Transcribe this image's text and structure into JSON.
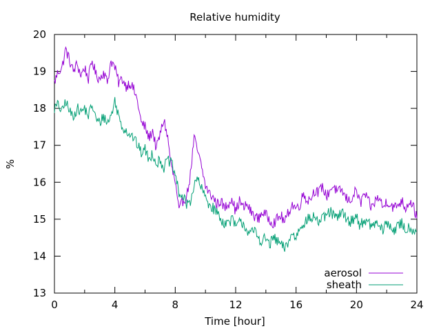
{
  "chart_data": {
    "type": "line",
    "title": "Relative humidity",
    "xlabel": "Time [hour]",
    "ylabel": "%",
    "xlim": [
      0,
      24
    ],
    "ylim": [
      13,
      20
    ],
    "xticks": [
      "0",
      "4",
      "8",
      "12",
      "16",
      "20",
      "24"
    ],
    "yticks": [
      "13",
      "14",
      "15",
      "16",
      "17",
      "18",
      "19",
      "20"
    ],
    "grid": false,
    "legend_position": "bottom-right",
    "series": [
      {
        "name": "aerosol",
        "color": "#9400d3",
        "x": [
          0,
          0.25,
          0.5,
          0.75,
          1,
          1.25,
          1.5,
          1.75,
          2,
          2.25,
          2.5,
          2.75,
          3,
          3.25,
          3.5,
          3.75,
          4,
          4.25,
          4.5,
          4.75,
          5,
          5.25,
          5.5,
          5.75,
          6,
          6.25,
          6.5,
          6.75,
          7,
          7.25,
          7.5,
          7.75,
          8,
          8.25,
          8.5,
          8.75,
          9,
          9.25,
          9.5,
          9.75,
          10,
          10.25,
          10.5,
          10.75,
          11,
          11.25,
          11.5,
          11.75,
          12,
          12.25,
          12.5,
          12.75,
          13,
          13.25,
          13.5,
          13.75,
          14,
          14.25,
          14.5,
          14.75,
          15,
          15.25,
          15.5,
          15.75,
          16,
          16.25,
          16.5,
          16.75,
          17,
          17.25,
          17.5,
          17.75,
          18,
          18.25,
          18.5,
          18.75,
          19,
          19.25,
          19.5,
          19.75,
          20,
          20.25,
          20.5,
          20.75,
          21,
          21.25,
          21.5,
          21.75,
          22,
          22.25,
          22.5,
          22.75,
          23,
          23.25,
          23.5,
          23.75,
          24
        ],
        "y": [
          18.7,
          19.0,
          19.1,
          19.6,
          19.3,
          19.0,
          19.2,
          18.9,
          19.1,
          18.8,
          19.3,
          18.9,
          18.8,
          19.0,
          18.7,
          19.3,
          19.1,
          18.7,
          18.8,
          18.6,
          18.7,
          18.5,
          18.2,
          17.6,
          17.5,
          17.2,
          17.4,
          16.9,
          17.3,
          17.7,
          17.2,
          16.4,
          16.0,
          15.2,
          15.5,
          15.6,
          16.2,
          17.2,
          16.8,
          16.4,
          15.9,
          15.7,
          15.6,
          15.4,
          15.5,
          15.3,
          15.4,
          15.6,
          15.2,
          15.5,
          15.3,
          15.4,
          15.2,
          15.1,
          15.0,
          15.2,
          15.1,
          15.0,
          14.9,
          15.0,
          15.1,
          14.9,
          15.2,
          15.4,
          15.3,
          15.4,
          15.7,
          15.5,
          15.6,
          15.8,
          15.7,
          15.9,
          15.6,
          15.8,
          15.9,
          15.7,
          15.8,
          15.6,
          15.5,
          15.6,
          15.8,
          15.4,
          15.7,
          15.5,
          15.3,
          15.5,
          15.6,
          15.3,
          15.5,
          15.4,
          15.3,
          15.4,
          15.5,
          15.3,
          15.5,
          15.4,
          15.0
        ],
        "noise": 0.15
      },
      {
        "name": "sheath",
        "color": "#009e73",
        "x": [
          0,
          0.25,
          0.5,
          0.75,
          1,
          1.25,
          1.5,
          1.75,
          2,
          2.25,
          2.5,
          2.75,
          3,
          3.25,
          3.5,
          3.75,
          4,
          4.25,
          4.5,
          4.75,
          5,
          5.25,
          5.5,
          5.75,
          6,
          6.25,
          6.5,
          6.75,
          7,
          7.25,
          7.5,
          7.75,
          8,
          8.25,
          8.5,
          8.75,
          9,
          9.25,
          9.5,
          9.75,
          10,
          10.25,
          10.5,
          10.75,
          11,
          11.25,
          11.5,
          11.75,
          12,
          12.25,
          12.5,
          12.75,
          13,
          13.25,
          13.5,
          13.75,
          14,
          14.25,
          14.5,
          14.75,
          15,
          15.25,
          15.5,
          15.75,
          16,
          16.25,
          16.5,
          16.75,
          17,
          17.25,
          17.5,
          17.75,
          18,
          18.25,
          18.5,
          18.75,
          19,
          19.25,
          19.5,
          19.75,
          20,
          20.25,
          20.5,
          20.75,
          21,
          21.25,
          21.5,
          21.75,
          22,
          22.25,
          22.5,
          22.75,
          23,
          23.25,
          23.5,
          23.75,
          24
        ],
        "y": [
          18.0,
          18.1,
          17.9,
          18.2,
          17.9,
          17.8,
          18.0,
          17.9,
          18.0,
          17.8,
          18.1,
          17.7,
          17.6,
          17.8,
          17.6,
          17.8,
          18.2,
          17.8,
          17.5,
          17.4,
          17.3,
          17.2,
          17.0,
          16.8,
          16.9,
          16.6,
          16.8,
          16.5,
          16.6,
          16.4,
          16.6,
          16.5,
          16.2,
          15.7,
          15.6,
          15.4,
          15.5,
          15.9,
          16.1,
          15.8,
          15.6,
          15.4,
          15.3,
          15.2,
          15.0,
          14.9,
          14.9,
          15.0,
          14.8,
          14.9,
          14.9,
          14.7,
          14.6,
          14.7,
          14.5,
          14.4,
          14.5,
          14.3,
          14.5,
          14.4,
          14.3,
          14.2,
          14.4,
          14.6,
          14.5,
          14.8,
          14.9,
          15.0,
          15.0,
          15.1,
          14.9,
          15.0,
          15.1,
          15.2,
          15.1,
          15.0,
          15.2,
          15.1,
          14.9,
          15.0,
          15.1,
          14.8,
          15.0,
          14.9,
          14.8,
          14.9,
          14.8,
          14.7,
          14.9,
          14.8,
          14.7,
          14.8,
          14.9,
          14.7,
          14.8,
          14.7,
          14.7
        ],
        "noise": 0.15
      }
    ]
  }
}
